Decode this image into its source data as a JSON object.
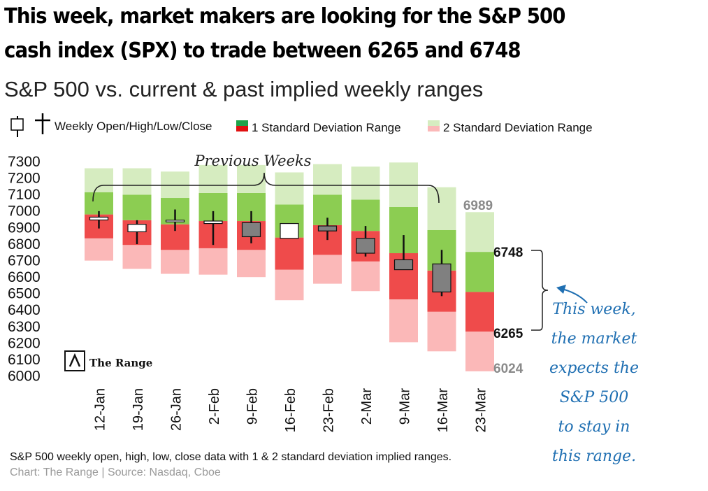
{
  "headline": {
    "line1": "This week, market makers are looking for the S&P 500",
    "line2": "cash index (SPX) to trade between  6265 and 6748"
  },
  "subtitle": "S&P 500 vs. current & past implied weekly ranges",
  "legend": {
    "ohlc": "Weekly Open/High/Low/Close",
    "one_sd": "1 Standard Deviation Range",
    "two_sd": "2 Standard Deviation Range"
  },
  "colors": {
    "green_1sd": "#8ccd52",
    "red_1sd": "#ef4b4b",
    "green_2sd": "#d6ecc0",
    "red_2sd": "#fbb8b8",
    "candle_down": "#808080",
    "candle_up": "#ffffff",
    "annotation": "#1f6fb2"
  },
  "chart_data": {
    "type": "candlestick-range",
    "ylim": [
      6000,
      7300
    ],
    "yticks": [
      7300,
      7200,
      7100,
      7000,
      6900,
      6800,
      6700,
      6600,
      6500,
      6400,
      6300,
      6200,
      6100,
      6000
    ],
    "brace_label": "Previous Weeks",
    "weeks": [
      {
        "label": "12-Jan",
        "sd2_low": 6695,
        "sd1_low": 6830,
        "mid": 6975,
        "sd1_high": 7110,
        "sd2_high": 7255,
        "open": 6950,
        "high": 6995,
        "low": 6890,
        "close": 6950
      },
      {
        "label": "19-Jan",
        "sd2_low": 6645,
        "sd1_low": 6790,
        "mid": 6940,
        "sd1_high": 7095,
        "sd2_high": 7255,
        "open": 6870,
        "high": 6940,
        "low": 6795,
        "close": 6915
      },
      {
        "label": "26-Jan",
        "sd2_low": 6615,
        "sd1_low": 6760,
        "mid": 6915,
        "sd1_high": 7075,
        "sd2_high": 7235,
        "open": 6930,
        "high": 7005,
        "low": 6875,
        "close": 6940
      },
      {
        "label": "2-Feb",
        "sd2_low": 6610,
        "sd1_low": 6770,
        "mid": 6935,
        "sd1_high": 7105,
        "sd2_high": 7275,
        "open": 6920,
        "high": 6995,
        "low": 6790,
        "close": 6935
      },
      {
        "label": "9-Feb",
        "sd2_low": 6595,
        "sd1_low": 6760,
        "mid": 6935,
        "sd1_high": 7105,
        "sd2_high": 7275,
        "open": 6925,
        "high": 6995,
        "low": 6800,
        "close": 6840
      },
      {
        "label": "16-Feb",
        "sd2_low": 6455,
        "sd1_low": 6640,
        "mid": 6835,
        "sd1_high": 7035,
        "sd2_high": 7230,
        "open": 6830,
        "high": 6920,
        "low": 6830,
        "close": 6920
      },
      {
        "label": "23-Feb",
        "sd2_low": 6555,
        "sd1_low": 6730,
        "mid": 6910,
        "sd1_high": 7095,
        "sd2_high": 7280,
        "open": 6905,
        "high": 6955,
        "low": 6820,
        "close": 6875
      },
      {
        "label": "2-Mar",
        "sd2_low": 6510,
        "sd1_low": 6690,
        "mid": 6875,
        "sd1_high": 7065,
        "sd2_high": 7265,
        "open": 6830,
        "high": 6905,
        "low": 6720,
        "close": 6740
      },
      {
        "label": "9-Mar",
        "sd2_low": 6200,
        "sd1_low": 6460,
        "mid": 6740,
        "sd1_high": 7020,
        "sd2_high": 7290,
        "open": 6700,
        "high": 6850,
        "low": 6640,
        "close": 6640
      },
      {
        "label": "16-Mar",
        "sd2_low": 6145,
        "sd1_low": 6385,
        "mid": 6635,
        "sd1_high": 6880,
        "sd2_high": 7140,
        "open": 6675,
        "high": 6760,
        "low": 6480,
        "close": 6505
      },
      {
        "label": "23-Mar",
        "sd2_low": 6024,
        "sd1_low": 6265,
        "mid": 6505,
        "sd1_high": 6748,
        "sd2_high": 6989,
        "open": null,
        "high": null,
        "low": null,
        "close": null
      }
    ],
    "current_labels": {
      "sd2_high": "6989",
      "sd1_high": "6748",
      "sd1_low": "6265",
      "sd2_low": "6024"
    }
  },
  "annotation_lines": [
    "This week,",
    "the market",
    "expects the",
    "S&P 500",
    "to stay in",
    "this range."
  ],
  "logo_text": "The Range",
  "footnote": "S&P 500 weekly open, high, low, close data with 1 & 2 standard deviation implied ranges.",
  "source": "Chart: The Range | Source: Nasdaq, Cboe"
}
